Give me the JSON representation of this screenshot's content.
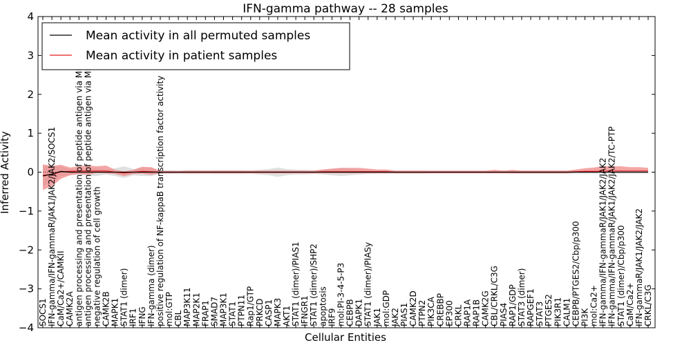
{
  "chart_data": {
    "type": "line",
    "title": "IFN-gamma pathway -- 28 samples",
    "xlabel": "Cellular Entities",
    "ylabel": "Inferred Activity",
    "ylim": [
      -4,
      4
    ],
    "yticks": [
      -4,
      -3,
      -2,
      -1,
      0,
      1,
      2,
      3,
      4
    ],
    "ytick_labels": [
      "−4",
      "−3",
      "−2",
      "−1",
      "0",
      "1",
      "2",
      "3",
      "4"
    ],
    "grid": false,
    "legend_position": "top-left",
    "categories": [
      "SOCS1",
      "IFN-gamma/IFN-gammaR/JAK1/JAK2/JAK2/SOCS1",
      "CaM/Ca2+/CAMKII",
      "CAMK2A",
      "antigen processing and presentation of peptide antigen via MHC class I",
      "antigen processing and presentation of peptide antigen via MHC class II",
      "negative regulation of cell growth",
      "CAMK2B",
      "MAPK1",
      "STAT1 (dimer)",
      "IRF1",
      "IFNG",
      "IFN-gamma (dimer)",
      "positive regulation of NF-kappaB transcription factor activity",
      "mol:GTP",
      "CBL",
      "MAP3K11",
      "MAP2K1",
      "FRAP1",
      "SMAD7",
      "MAP3K1",
      "STAT1",
      "PTPN11",
      "Rap1/GTP",
      "PRKCD",
      "CASP1",
      "MAPK3",
      "AKT1",
      "STAT1 (dimer)/PIAS1",
      "IFNGR1",
      "STAT1 (dimer)/SHP2",
      "apoptosis",
      "IRF9",
      "mol:PI-3-4-5-P3",
      "CEBPB",
      "DAPK1",
      "STAT1 (dimer)/PIASy",
      "JAK1",
      "mol:GDP",
      "JAK2",
      "PIAS1",
      "CAMK2D",
      "PTPN2",
      "PIK3CA",
      "CREBBP",
      "EP300",
      "CRKL",
      "RAP1A",
      "RAP1B",
      "CAMK2G",
      "CBL/CRKL/C3G",
      "PIAS4",
      "RAP1/GDP",
      "STAT3 (dimer)",
      "RAPGEF1",
      "STAT3",
      "PTGES2",
      "PIK3R1",
      "CALM1",
      "CEBPB/PTGES2/Cbp/p300",
      "PI3K",
      "mol:Ca2+",
      "IFN-gamma/IFN-gammaR/JAK1/JAK2/JAK2",
      "IFN-gamma/IFN-gammaR/JAK1/JAK2/JAK2/TC-PTP",
      "STAT1 (dimer)/Cbp/p300",
      "CaM/Ca2+",
      "IFN-gammaR/JAK1/JAK2/JAK2",
      "CRKL/C3G"
    ],
    "series": [
      {
        "name": "Mean activity in all permuted samples",
        "color": "#000000",
        "values": [
          -0.1,
          -0.05,
          0.02,
          0.0,
          0.0,
          0.0,
          0.0,
          0.0,
          0.0,
          0.0,
          0.0,
          0.0,
          0.0,
          0.0,
          0.0,
          0.0,
          0.0,
          0.0,
          0.0,
          0.0,
          0.0,
          0.0,
          0.0,
          0.0,
          0.0,
          0.0,
          0.0,
          0.0,
          0.0,
          0.0,
          0.0,
          0.0,
          0.0,
          0.0,
          0.0,
          0.0,
          0.0,
          0.0,
          0.0,
          0.0,
          0.0,
          0.0,
          0.0,
          0.0,
          0.0,
          0.0,
          0.0,
          0.0,
          0.0,
          0.0,
          0.0,
          0.0,
          0.0,
          0.0,
          0.0,
          0.0,
          0.0,
          0.0,
          0.0,
          0.0,
          0.0,
          0.0,
          0.0,
          0.0,
          0.0,
          0.0,
          0.0,
          0.0
        ],
        "band_lower": [
          -0.25,
          -0.22,
          -0.12,
          -0.08,
          -0.06,
          -0.1,
          -0.1,
          -0.06,
          -0.1,
          -0.15,
          -0.08,
          -0.1,
          -0.1,
          -0.05,
          -0.05,
          -0.04,
          -0.05,
          -0.05,
          -0.04,
          -0.05,
          -0.05,
          -0.05,
          -0.05,
          -0.04,
          -0.06,
          -0.08,
          -0.12,
          -0.08,
          -0.06,
          -0.06,
          -0.05,
          -0.06,
          -0.08,
          -0.1,
          -0.08,
          -0.06,
          -0.05,
          -0.04,
          -0.04,
          -0.04,
          -0.04,
          -0.04,
          -0.04,
          -0.03,
          -0.03,
          -0.03,
          -0.03,
          -0.03,
          -0.03,
          -0.03,
          -0.03,
          -0.03,
          -0.04,
          -0.04,
          -0.04,
          -0.04,
          -0.04,
          -0.04,
          -0.04,
          -0.04,
          -0.04,
          -0.04,
          -0.04,
          -0.04,
          -0.04,
          -0.04,
          -0.04,
          -0.04
        ],
        "band_upper": [
          0.25,
          0.22,
          0.12,
          0.08,
          0.06,
          0.1,
          0.1,
          0.06,
          0.1,
          0.15,
          0.08,
          0.1,
          0.1,
          0.05,
          0.05,
          0.04,
          0.05,
          0.05,
          0.04,
          0.05,
          0.05,
          0.05,
          0.05,
          0.04,
          0.06,
          0.08,
          0.12,
          0.08,
          0.06,
          0.06,
          0.05,
          0.06,
          0.08,
          0.1,
          0.08,
          0.06,
          0.05,
          0.04,
          0.04,
          0.04,
          0.04,
          0.04,
          0.04,
          0.03,
          0.03,
          0.03,
          0.03,
          0.03,
          0.03,
          0.03,
          0.03,
          0.03,
          0.04,
          0.04,
          0.04,
          0.04,
          0.04,
          0.04,
          0.04,
          0.04,
          0.04,
          0.04,
          0.04,
          0.04,
          0.04,
          0.04,
          0.04,
          0.04
        ]
      },
      {
        "name": "Mean activity in patient samples",
        "color": "#e41a1c",
        "values": [
          -0.08,
          -0.06,
          0.01,
          0.02,
          0.03,
          0.03,
          0.03,
          0.03,
          0.0,
          -0.02,
          0.0,
          0.02,
          0.01,
          0.0,
          0.0,
          0.0,
          0.0,
          0.0,
          0.0,
          0.0,
          0.0,
          0.0,
          0.0,
          0.0,
          0.0,
          0.0,
          0.0,
          0.0,
          0.0,
          0.0,
          0.0,
          0.01,
          0.01,
          0.01,
          0.01,
          0.01,
          0.01,
          0.01,
          0.01,
          0.0,
          0.0,
          0.0,
          0.0,
          0.0,
          0.0,
          0.0,
          0.0,
          0.0,
          0.0,
          0.0,
          0.0,
          0.0,
          0.0,
          0.0,
          0.0,
          0.0,
          0.0,
          0.0,
          0.0,
          0.01,
          0.02,
          0.02,
          0.03,
          0.03,
          0.03,
          0.03,
          0.03,
          0.03
        ],
        "band_lower": [
          -0.38,
          -0.3,
          -0.18,
          -0.1,
          -0.08,
          -0.1,
          -0.05,
          -0.06,
          -0.05,
          -0.08,
          -0.05,
          -0.06,
          -0.08,
          -0.03,
          -0.03,
          -0.03,
          -0.03,
          -0.03,
          -0.03,
          -0.03,
          -0.03,
          -0.03,
          -0.03,
          -0.03,
          -0.03,
          -0.03,
          -0.03,
          -0.03,
          -0.03,
          -0.03,
          -0.03,
          -0.04,
          -0.04,
          -0.04,
          -0.04,
          -0.04,
          -0.04,
          -0.04,
          -0.04,
          -0.03,
          -0.03,
          -0.03,
          -0.03,
          -0.03,
          -0.03,
          -0.03,
          -0.03,
          -0.03,
          -0.03,
          -0.03,
          -0.03,
          -0.03,
          -0.03,
          -0.03,
          -0.03,
          -0.03,
          -0.03,
          -0.03,
          -0.03,
          -0.02,
          -0.02,
          -0.02,
          -0.01,
          -0.01,
          -0.01,
          -0.01,
          -0.01,
          -0.01
        ],
        "band_upper": [
          0.28,
          0.22,
          0.18,
          0.1,
          0.12,
          0.14,
          0.12,
          0.14,
          0.06,
          0.04,
          0.06,
          0.12,
          0.12,
          0.03,
          0.03,
          0.03,
          0.04,
          0.04,
          0.04,
          0.04,
          0.04,
          0.04,
          0.04,
          0.04,
          0.04,
          0.04,
          0.04,
          0.04,
          0.04,
          0.04,
          0.04,
          0.06,
          0.08,
          0.1,
          0.1,
          0.1,
          0.08,
          0.06,
          0.06,
          0.04,
          0.04,
          0.04,
          0.04,
          0.04,
          0.04,
          0.04,
          0.04,
          0.04,
          0.04,
          0.04,
          0.06,
          0.04,
          0.06,
          0.04,
          0.04,
          0.04,
          0.04,
          0.04,
          0.04,
          0.06,
          0.08,
          0.1,
          0.12,
          0.12,
          0.12,
          0.1,
          0.1,
          0.08
        ]
      }
    ]
  }
}
